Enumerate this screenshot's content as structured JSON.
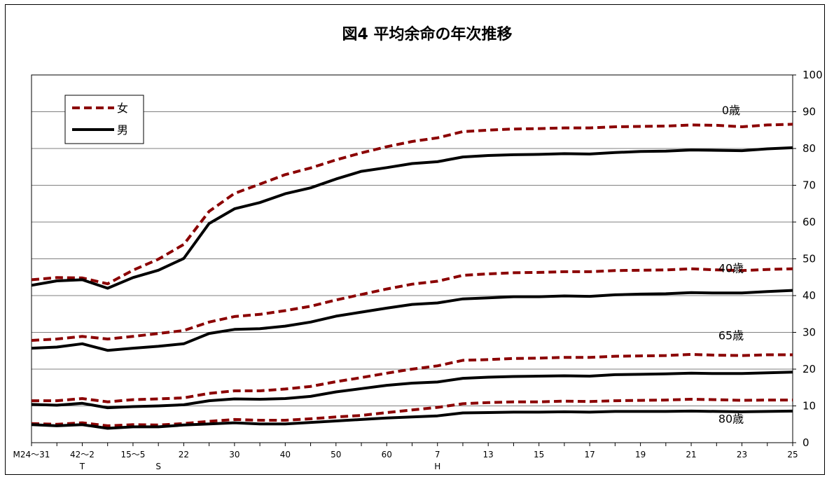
{
  "chart_data": {
    "type": "line",
    "title": "図4 平均余命の年次推移",
    "ylim": [
      0,
      100
    ],
    "y_ticks": [
      "0",
      "10",
      "20",
      "30",
      "40",
      "50",
      "60",
      "70",
      "80",
      "90",
      "100"
    ],
    "y_axis_side": "right",
    "grid": true,
    "legend_position": "top-left",
    "x_tick_labels": [
      "M24～31",
      "42～2",
      "15～5",
      "22",
      "30",
      "40",
      "50",
      "60",
      "7",
      "13",
      "15",
      "17",
      "19",
      "21",
      "23",
      "25"
    ],
    "era_labels": [
      "T",
      "S",
      "H"
    ],
    "legend": [
      {
        "label": "女",
        "style": "dashed",
        "color": "#8b0000"
      },
      {
        "label": "男",
        "style": "solid",
        "color": "#000000"
      }
    ],
    "group_labels": [
      "0歳",
      "40歳",
      "65歳",
      "80歳"
    ],
    "series": [
      {
        "name": "女",
        "group": "0歳",
        "values": [
          44.3,
          44.9,
          44.8,
          43.2,
          46.9,
          49.9,
          53.9,
          62.9,
          67.8,
          70.3,
          72.9,
          74.7,
          76.9,
          78.8,
          80.5,
          81.9,
          82.9,
          84.6,
          85.0,
          85.3,
          85.4,
          85.6,
          85.6,
          85.9,
          86.0,
          86.1,
          86.4,
          86.3,
          85.9,
          86.4,
          86.6
        ]
      },
      {
        "name": "男",
        "group": "0歳",
        "values": [
          42.8,
          44.0,
          44.3,
          42.0,
          44.9,
          46.9,
          50.1,
          59.6,
          63.6,
          65.3,
          67.7,
          69.3,
          71.7,
          73.8,
          74.8,
          75.9,
          76.4,
          77.7,
          78.1,
          78.3,
          78.4,
          78.6,
          78.5,
          78.9,
          79.2,
          79.3,
          79.6,
          79.5,
          79.4,
          79.9,
          80.2
        ]
      },
      {
        "name": "女",
        "group": "40歳",
        "values": [
          27.8,
          28.2,
          28.9,
          28.2,
          28.9,
          29.7,
          30.5,
          32.8,
          34.3,
          34.9,
          35.9,
          37.1,
          38.8,
          40.3,
          41.8,
          43.1,
          43.9,
          45.5,
          45.9,
          46.2,
          46.3,
          46.5,
          46.5,
          46.8,
          46.9,
          47.0,
          47.3,
          47.0,
          46.8,
          47.1,
          47.3
        ]
      },
      {
        "name": "男",
        "group": "40歳",
        "values": [
          25.7,
          26.0,
          26.9,
          25.1,
          25.7,
          26.2,
          26.9,
          29.7,
          30.8,
          31.0,
          31.7,
          32.8,
          34.4,
          35.5,
          36.6,
          37.6,
          38.0,
          39.1,
          39.4,
          39.7,
          39.7,
          39.9,
          39.8,
          40.2,
          40.4,
          40.5,
          40.8,
          40.7,
          40.7,
          41.1,
          41.4
        ]
      },
      {
        "name": "女",
        "group": "65歳",
        "values": [
          11.4,
          11.4,
          12.0,
          11.1,
          11.7,
          11.9,
          12.2,
          13.4,
          14.1,
          14.1,
          14.6,
          15.3,
          16.6,
          17.7,
          18.9,
          20.0,
          20.9,
          22.4,
          22.6,
          22.9,
          23.0,
          23.2,
          23.2,
          23.5,
          23.6,
          23.7,
          24.0,
          23.8,
          23.7,
          23.9,
          23.9
        ]
      },
      {
        "name": "男",
        "group": "65歳",
        "values": [
          10.4,
          10.2,
          10.7,
          9.5,
          9.8,
          10.0,
          10.3,
          11.4,
          11.9,
          11.8,
          12.0,
          12.6,
          13.8,
          14.7,
          15.6,
          16.2,
          16.5,
          17.5,
          17.8,
          18.0,
          18.1,
          18.2,
          18.1,
          18.5,
          18.6,
          18.7,
          18.9,
          18.8,
          18.8,
          19.0,
          19.2
        ]
      },
      {
        "name": "女",
        "group": "80歳",
        "values": [
          5.2,
          5.0,
          5.4,
          4.6,
          4.9,
          4.8,
          5.2,
          5.8,
          6.3,
          6.1,
          6.1,
          6.5,
          7.0,
          7.4,
          8.2,
          8.9,
          9.6,
          10.6,
          10.9,
          11.1,
          11.1,
          11.3,
          11.2,
          11.4,
          11.5,
          11.6,
          11.8,
          11.7,
          11.5,
          11.6,
          11.6
        ]
      },
      {
        "name": "男",
        "group": "80歳",
        "values": [
          4.9,
          4.6,
          4.9,
          3.9,
          4.3,
          4.3,
          4.8,
          5.1,
          5.4,
          5.1,
          5.1,
          5.5,
          5.9,
          6.3,
          6.7,
          7.0,
          7.3,
          8.1,
          8.2,
          8.3,
          8.3,
          8.4,
          8.3,
          8.5,
          8.5,
          8.5,
          8.6,
          8.5,
          8.4,
          8.5,
          8.6
        ]
      }
    ]
  }
}
